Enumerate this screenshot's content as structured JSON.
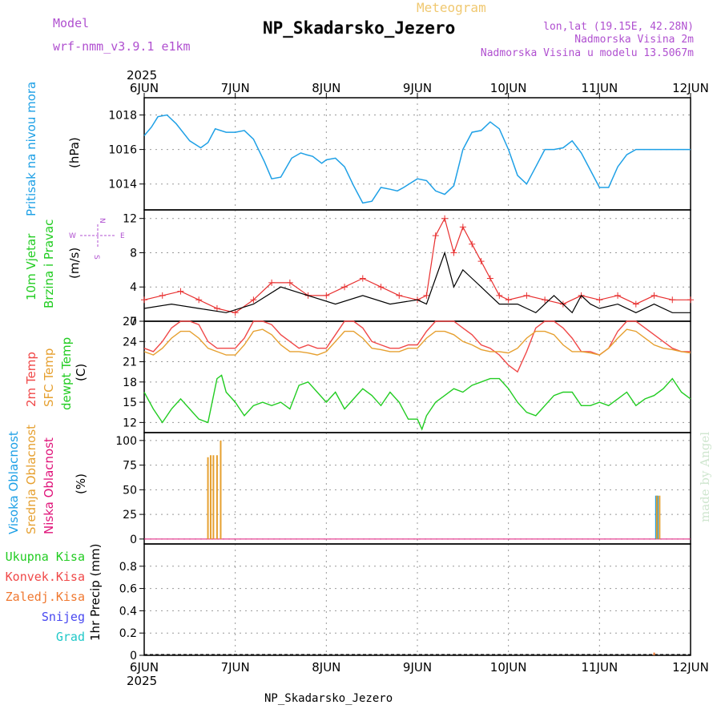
{
  "header": {
    "meteogram_label": "Meteogram",
    "model_label": "Model",
    "model_name": "wrf-nmm_v3.9.1 e1km",
    "station": "NP_Skadarsko_Jezero",
    "lonlat": "lon,lat (19.15E, 42.28N)",
    "altitude": "Nadmorska Visina 2m",
    "model_altitude": "Nadmorska Visina u modelu 13.5067m",
    "footer_station": "NP_Skadarsko_Jezero",
    "watermark": "made by Angel"
  },
  "x_axis": {
    "year": "2025",
    "labels": [
      "6JUN",
      "7JUN",
      "8JUN",
      "9JUN",
      "10JUN",
      "11JUN",
      "12JUN"
    ]
  },
  "colors": {
    "pressure": "#1ea0e6",
    "temp2m": "#f04848",
    "sfc_temp": "#e6a030",
    "dewpoint": "#22cc22",
    "wind_speed": "#000000",
    "wind_gust": "#e83030",
    "cloud_high": "#1ea0e6",
    "cloud_mid": "#e6a030",
    "cloud_low": "#e0147a",
    "precip_total": "#22cc22",
    "precip_conv": "#f04848",
    "precip_frozen": "#f07830",
    "precip_snow": "#4848f0",
    "precip_graupel": "#20c8c8"
  },
  "chart_data": [
    {
      "type": "line",
      "ylabels": [
        "Pritisak na nivou mora",
        "(hPa)"
      ],
      "ylim": [
        1012.5,
        1019
      ],
      "yticks": [
        1014,
        1016,
        1018
      ],
      "x_unit": "days since 6JUN 00UTC",
      "series": [
        {
          "name": "Pritisak na nivou mora",
          "x": [
            0,
            0.08,
            0.15,
            0.25,
            0.35,
            0.5,
            0.62,
            0.7,
            0.78,
            0.9,
            1.0,
            1.1,
            1.2,
            1.32,
            1.4,
            1.5,
            1.62,
            1.72,
            1.78,
            1.85,
            1.95,
            2.0,
            2.1,
            2.2,
            2.3,
            2.4,
            2.5,
            2.6,
            2.7,
            2.78,
            2.85,
            3.0,
            3.1,
            3.2,
            3.3,
            3.4,
            3.5,
            3.6,
            3.7,
            3.8,
            3.9,
            4.0,
            4.1,
            4.2,
            4.3,
            4.4,
            4.5,
            4.6,
            4.7,
            4.8,
            4.9,
            5.0,
            5.1,
            5.2,
            5.3,
            5.4,
            5.5,
            5.6,
            5.7,
            5.8,
            5.9,
            6.0
          ],
          "values": [
            1016.8,
            1017.3,
            1017.9,
            1018.0,
            1017.5,
            1016.5,
            1016.1,
            1016.4,
            1017.2,
            1017.0,
            1017.0,
            1017.1,
            1016.6,
            1015.3,
            1014.3,
            1014.4,
            1015.5,
            1015.8,
            1015.7,
            1015.6,
            1015.2,
            1015.4,
            1015.5,
            1015.0,
            1013.9,
            1012.9,
            1013.0,
            1013.8,
            1013.7,
            1013.6,
            1013.8,
            1014.3,
            1014.2,
            1013.6,
            1013.4,
            1013.9,
            1016.0,
            1017.0,
            1017.1,
            1017.6,
            1017.2,
            1016.0,
            1014.5,
            1014.0,
            1015.0,
            1016.0,
            1016.0,
            1016.1,
            1016.5,
            1015.8,
            1014.8,
            1013.8,
            1013.8,
            1015.0,
            1015.7,
            1016.0,
            1016.0,
            1016.0,
            1016.0,
            1016.0,
            1016.0,
            1016.0
          ]
        }
      ]
    },
    {
      "type": "line",
      "ylabels": [
        "10m Vjetar",
        "Brzina i Pravac",
        "(m/s)"
      ],
      "compass": [
        "N",
        "W",
        "E",
        "S"
      ],
      "ylim": [
        0,
        13
      ],
      "yticks": [
        0,
        4,
        8,
        12
      ],
      "series": [
        {
          "name": "speed",
          "x": [
            0,
            0.3,
            0.6,
            0.9,
            1.2,
            1.5,
            1.8,
            2.1,
            2.4,
            2.7,
            3.0,
            3.1,
            3.2,
            3.3,
            3.4,
            3.5,
            3.6,
            3.7,
            3.8,
            3.9,
            4.0,
            4.1,
            4.2,
            4.3,
            4.4,
            4.5,
            4.6,
            4.7,
            4.8,
            4.9,
            5.0,
            5.2,
            5.4,
            5.6,
            5.8,
            6.0
          ],
          "values": [
            1.5,
            2.0,
            1.5,
            1.0,
            2.0,
            4.0,
            3.0,
            2.0,
            3.0,
            2.0,
            2.5,
            2.0,
            5.0,
            8.0,
            4.0,
            6.0,
            5.0,
            4.0,
            3.0,
            2.0,
            2.0,
            2.0,
            1.5,
            1.0,
            2.0,
            3.0,
            2.0,
            1.0,
            3.0,
            2.0,
            1.5,
            2.0,
            1.0,
            2.0,
            1.0,
            1.0
          ]
        },
        {
          "name": "gust",
          "x": [
            0,
            0.2,
            0.4,
            0.6,
            0.8,
            1.0,
            1.2,
            1.4,
            1.6,
            1.8,
            2.0,
            2.2,
            2.4,
            2.6,
            2.8,
            3.0,
            3.1,
            3.2,
            3.3,
            3.4,
            3.5,
            3.6,
            3.7,
            3.8,
            3.9,
            4.0,
            4.2,
            4.4,
            4.6,
            4.8,
            5.0,
            5.2,
            5.4,
            5.6,
            5.8,
            6.0
          ],
          "values": [
            2.5,
            3.0,
            3.5,
            2.5,
            1.5,
            1.0,
            2.5,
            4.5,
            4.5,
            3.0,
            3.0,
            4.0,
            5.0,
            4.0,
            3.0,
            2.5,
            3.0,
            10.0,
            12.0,
            8.0,
            11.0,
            9.0,
            7.0,
            5.0,
            3.0,
            2.5,
            3.0,
            2.5,
            2.0,
            3.0,
            2.5,
            3.0,
            2.0,
            3.0,
            2.5,
            2.5
          ]
        }
      ]
    },
    {
      "type": "line",
      "ylabels": [
        "2m Temp",
        "SFC Temp",
        "dewpt Temp",
        "(C)"
      ],
      "ylim": [
        10.5,
        27
      ],
      "yticks": [
        12,
        15,
        18,
        21,
        24,
        27
      ],
      "series": [
        {
          "name": "2m Temp",
          "x": [
            0,
            0.1,
            0.2,
            0.3,
            0.4,
            0.5,
            0.6,
            0.7,
            0.8,
            0.9,
            1.0,
            1.1,
            1.2,
            1.3,
            1.4,
            1.5,
            1.6,
            1.7,
            1.8,
            1.9,
            2.0,
            2.1,
            2.2,
            2.3,
            2.4,
            2.5,
            2.6,
            2.7,
            2.8,
            2.9,
            3.0,
            3.1,
            3.2,
            3.3,
            3.4,
            3.5,
            3.6,
            3.7,
            3.8,
            3.9,
            4.0,
            4.1,
            4.2,
            4.3,
            4.4,
            4.5,
            4.6,
            4.7,
            4.8,
            4.9,
            5.0,
            5.1,
            5.2,
            5.3,
            5.4,
            5.5,
            5.6,
            5.7,
            5.8,
            5.9,
            6.0
          ],
          "values": [
            23.0,
            22.5,
            24.0,
            26.0,
            27.0,
            27.0,
            26.5,
            24.0,
            23.0,
            23.0,
            23.0,
            24.5,
            27.0,
            27.0,
            26.5,
            25.0,
            24.0,
            23.0,
            23.5,
            23.0,
            23.0,
            25.0,
            27.0,
            27.0,
            26.0,
            24.0,
            23.5,
            23.0,
            23.0,
            23.5,
            23.5,
            25.5,
            27.0,
            27.0,
            27.0,
            26.0,
            25.0,
            23.5,
            23.0,
            22.0,
            20.5,
            19.5,
            22.5,
            26.0,
            27.0,
            27.0,
            26.0,
            24.5,
            22.5,
            22.5,
            22.0,
            23.0,
            25.5,
            27.0,
            27.0,
            26.0,
            25.0,
            24.0,
            23.0,
            22.5,
            22.5
          ]
        },
        {
          "name": "SFC Temp",
          "x": [
            0,
            0.1,
            0.2,
            0.3,
            0.4,
            0.5,
            0.6,
            0.7,
            0.8,
            0.9,
            1.0,
            1.1,
            1.2,
            1.3,
            1.4,
            1.5,
            1.6,
            1.7,
            1.8,
            1.9,
            2.0,
            2.1,
            2.2,
            2.3,
            2.4,
            2.5,
            2.6,
            2.7,
            2.8,
            2.9,
            3.0,
            3.1,
            3.2,
            3.3,
            3.4,
            3.5,
            3.6,
            3.7,
            3.8,
            3.9,
            4.0,
            4.1,
            4.2,
            4.3,
            4.4,
            4.5,
            4.6,
            4.7,
            4.8,
            4.9,
            5.0,
            5.1,
            5.2,
            5.3,
            5.4,
            5.5,
            5.6,
            5.7,
            5.8,
            5.9,
            6.0
          ],
          "values": [
            22.5,
            22.0,
            23.0,
            24.5,
            25.5,
            25.5,
            24.5,
            23.0,
            22.5,
            22.0,
            22.0,
            23.5,
            25.5,
            25.8,
            25.0,
            23.5,
            22.5,
            22.5,
            22.3,
            22.0,
            22.5,
            24.0,
            25.5,
            25.5,
            24.5,
            23.0,
            22.8,
            22.5,
            22.5,
            23.0,
            23.0,
            24.5,
            25.5,
            25.5,
            25.0,
            24.0,
            23.5,
            22.8,
            22.5,
            22.5,
            22.3,
            23.0,
            24.5,
            25.5,
            25.5,
            25.0,
            23.5,
            22.5,
            22.5,
            22.3,
            22.0,
            23.0,
            24.5,
            25.8,
            25.5,
            24.5,
            23.5,
            23.0,
            22.8,
            22.5,
            22.3
          ]
        },
        {
          "name": "dewpt Temp",
          "x": [
            0,
            0.1,
            0.2,
            0.3,
            0.4,
            0.5,
            0.6,
            0.7,
            0.8,
            0.85,
            0.9,
            1.0,
            1.1,
            1.2,
            1.3,
            1.4,
            1.5,
            1.6,
            1.7,
            1.8,
            1.9,
            2.0,
            2.1,
            2.2,
            2.3,
            2.4,
            2.5,
            2.6,
            2.7,
            2.8,
            2.9,
            3.0,
            3.05,
            3.1,
            3.2,
            3.3,
            3.4,
            3.5,
            3.6,
            3.7,
            3.8,
            3.9,
            4.0,
            4.1,
            4.2,
            4.3,
            4.4,
            4.5,
            4.6,
            4.7,
            4.8,
            4.9,
            5.0,
            5.1,
            5.2,
            5.3,
            5.4,
            5.5,
            5.6,
            5.7,
            5.8,
            5.9,
            6.0
          ],
          "values": [
            16.5,
            14.0,
            12.0,
            14.0,
            15.5,
            14.0,
            12.5,
            12.0,
            18.5,
            19.0,
            16.5,
            15.0,
            13.0,
            14.5,
            15.0,
            14.5,
            15.0,
            14.0,
            17.5,
            18.0,
            16.5,
            15.0,
            16.5,
            14.0,
            15.5,
            17.0,
            16.0,
            14.5,
            16.5,
            15.0,
            12.5,
            12.5,
            11.0,
            13.0,
            15.0,
            16.0,
            17.0,
            16.5,
            17.5,
            18.0,
            18.5,
            18.5,
            17.0,
            15.0,
            13.5,
            13.0,
            14.5,
            16.0,
            16.5,
            16.5,
            14.5,
            14.5,
            15.0,
            14.5,
            15.5,
            16.5,
            14.5,
            15.5,
            16.0,
            17.0,
            18.5,
            16.5,
            15.5
          ]
        }
      ]
    },
    {
      "type": "bar",
      "ylabels": [
        "Visoka Oblacnost",
        "Srednja Oblacnost",
        "Niska Oblacnost",
        "(%)"
      ],
      "ylim": [
        -5,
        108
      ],
      "yticks": [
        0,
        25,
        50,
        75,
        100
      ],
      "series": [
        {
          "name": "Visoka Oblacnost",
          "x": [
            5.62,
            5.64
          ],
          "values": [
            44,
            44
          ]
        },
        {
          "name": "Srednja Oblacnost",
          "x": [
            0.7,
            0.73,
            0.76,
            0.8,
            0.84,
            5.63,
            5.66
          ],
          "values": [
            83,
            85,
            85,
            85,
            100,
            44,
            44
          ]
        },
        {
          "name": "Niska Oblacnost",
          "x": [],
          "values": []
        }
      ]
    },
    {
      "type": "bar",
      "ylabels": [
        "1hr Precip (mm)"
      ],
      "legend": [
        "Ukupna Kisa",
        "Konvek.Kisa",
        "Zaledj.Kisa",
        "Snijeg",
        "Grad"
      ],
      "ylim": [
        0,
        1.0
      ],
      "yticks": [
        0,
        0.2,
        0.4,
        0.6,
        0.8
      ],
      "series": [
        {
          "name": "Zaledj.Kisa",
          "x": [
            5.6
          ],
          "values": [
            0.01
          ]
        }
      ]
    }
  ]
}
